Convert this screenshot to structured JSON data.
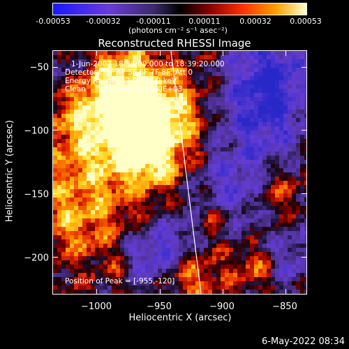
{
  "colorbar": {
    "tick_labels": [
      "-0.00053",
      "-0.00032",
      "-0.00011",
      "0.00011",
      "0.00032",
      "0.00053"
    ],
    "units": "(photons cm⁻² s⁻¹ asec⁻²)"
  },
  "title": "Reconstructed RHESSI Image",
  "annotations": {
    "time_range": "1-Jun-2007 18:36:00.000 to 18:39:20.000",
    "detectors": "Detectors: 3F 4F 5F 6F 7F 8F, Att 0",
    "energy_range": "Energy Range: 12.0 - 25.0 keV",
    "method_counts": "Clean     Total counts: 6.60E+03",
    "peak": "Position of Peak = [-955,-120]"
  },
  "axes": {
    "x_label": "Heliocentric X (arcsec)",
    "y_label": "Heliocentric Y (arcsec)",
    "x_ticks": [
      "−1000",
      "−950",
      "−900",
      "−850"
    ],
    "y_ticks": [
      "−50",
      "−100",
      "−150",
      "−200"
    ],
    "x_tick_values": [
      -1000,
      -950,
      -900,
      -850
    ],
    "y_tick_values": [
      -50,
      -100,
      -150,
      -200
    ],
    "x_range": [
      -1035,
      -833
    ],
    "y_range": [
      -37,
      -230
    ]
  },
  "limb_line": {
    "x_top": -941,
    "x_bottom": -917
  },
  "timestamp": "6-May-2022 08:34"
}
